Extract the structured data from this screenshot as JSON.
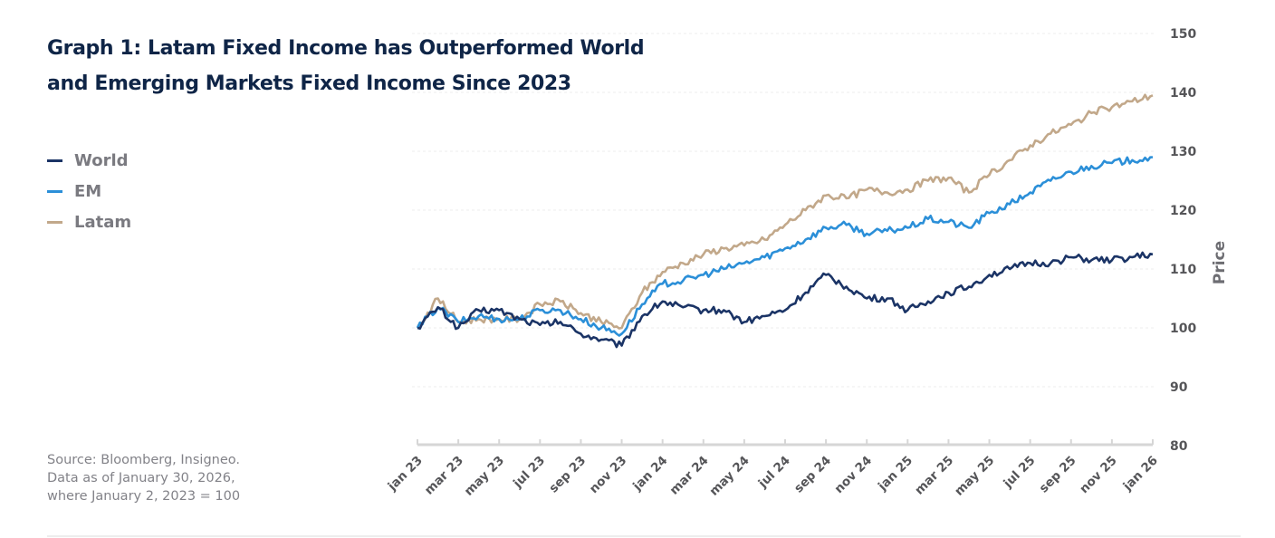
{
  "chart_data": {
    "type": "line",
    "title": "Graph 1: Latam Fixed Income has Outperformed World and Emerging Markets Fixed Income Since 2023",
    "xlabel": "",
    "ylabel": "Price",
    "ylim": [
      80,
      150
    ],
    "yticks": [
      80,
      90,
      100,
      110,
      120,
      130,
      140,
      150
    ],
    "grid": true,
    "legend_position": "left",
    "x": [
      "jan 23",
      "feb 23",
      "mar 23",
      "apr 23",
      "may 23",
      "jun 23",
      "jul 23",
      "aug 23",
      "sep 23",
      "oct 23",
      "nov 23",
      "dec 23",
      "jan 24",
      "feb 24",
      "mar 24",
      "apr 24",
      "may 24",
      "jun 24",
      "jul 24",
      "aug 24",
      "sep 24",
      "oct 24",
      "nov 24",
      "dec 24",
      "jan 25",
      "feb 25",
      "mar 25",
      "apr 25",
      "may 25",
      "jun 25",
      "jul 25",
      "aug 25",
      "sep 25",
      "oct 25",
      "nov 25",
      "dec 25",
      "jan 26"
    ],
    "xtick_labels": [
      "jan 23",
      "mar 23",
      "may 23",
      "jul 23",
      "sep 23",
      "nov 23",
      "jan 24",
      "mar 24",
      "may 24",
      "jul 24",
      "sep 24",
      "nov 24",
      "jan 25",
      "mar 25",
      "may 25",
      "jul 25",
      "sep 25",
      "nov 25",
      "jan 26"
    ],
    "series": [
      {
        "name": "World",
        "color": "#1b3466",
        "values": [
          100,
          103.5,
          100,
          103,
          103,
          101.5,
          100.5,
          101,
          99,
          98,
          97,
          102,
          104.5,
          103.5,
          103,
          103,
          101,
          102,
          103,
          106,
          109,
          107,
          105,
          105,
          103,
          104.5,
          106,
          107,
          109,
          110,
          111,
          111,
          112,
          111.5,
          111.5,
          112,
          112.5
        ]
      },
      {
        "name": "EM",
        "color": "#2b8fd8",
        "values": [
          100,
          103.5,
          101,
          102,
          101.5,
          101.5,
          103,
          103,
          101.5,
          100,
          99,
          104,
          107.5,
          108,
          109,
          110,
          111,
          112,
          113.5,
          115,
          117,
          117.5,
          116,
          116.5,
          117,
          118.5,
          118,
          117,
          119.5,
          121,
          123,
          125,
          126.5,
          127.5,
          128,
          128.5,
          129
        ]
      },
      {
        "name": "Latam",
        "color": "#c2a88a",
        "values": [
          100,
          105,
          101,
          101.5,
          101.5,
          101.5,
          104,
          104.5,
          102.5,
          101,
          100,
          106,
          109.5,
          111,
          112.5,
          113.5,
          114,
          115,
          117.5,
          120,
          122.5,
          122,
          123.5,
          123,
          123.5,
          125,
          125.5,
          123,
          126,
          128.5,
          131,
          133,
          134.5,
          136.5,
          137.5,
          138.5,
          139.5
        ]
      }
    ]
  },
  "header": {
    "title_line1": "Graph 1: Latam Fixed Income has Outperformed World",
    "title_line2": "and Emerging Markets Fixed Income Since 2023"
  },
  "legend": {
    "items": [
      {
        "label": "World",
        "color": "#1b3466"
      },
      {
        "label": "EM",
        "color": "#2b8fd8"
      },
      {
        "label": "Latam",
        "color": "#c2a88a"
      }
    ]
  },
  "footer": {
    "source_line1": "Source: Bloomberg, Insigneo.",
    "source_line2": "Data as of January 30, 2026,",
    "source_line3": "where January 2, 2023 = 100"
  }
}
